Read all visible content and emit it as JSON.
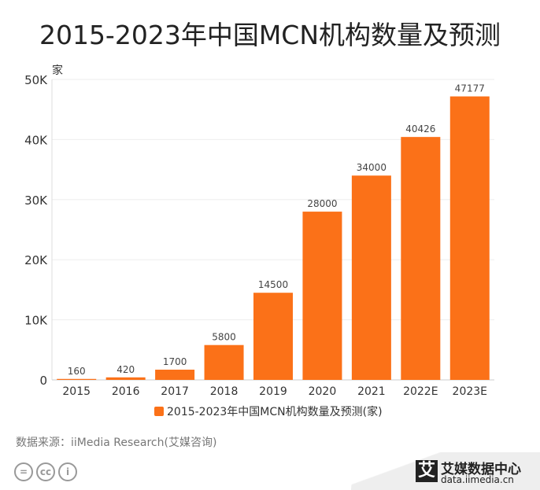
{
  "chart_data": {
    "type": "bar",
    "title": "2015-2023年中国MCN机构数量及预测",
    "ylabel": "家",
    "categories": [
      "2015",
      "2016",
      "2017",
      "2018",
      "2019",
      "2020",
      "2021",
      "2022E",
      "2023E"
    ],
    "series": [
      {
        "name": "2015-2023年中国MCN机构数量及预测(家)",
        "values": [
          160,
          420,
          1700,
          5800,
          14500,
          28000,
          34000,
          40426,
          47177
        ],
        "color": "#fb7118"
      }
    ],
    "ylim": [
      0,
      50000
    ],
    "yticks": [
      0,
      10000,
      20000,
      30000,
      40000,
      50000
    ],
    "ytick_labels": [
      "0",
      "10K",
      "20K",
      "30K",
      "40K",
      "50K"
    ],
    "grid": true,
    "legend_position": "bottom"
  },
  "footer": {
    "source": "数据来源：iiMedia Research(艾媒咨询)",
    "license_icons": [
      "equals-icon",
      "cc-icon",
      "person-icon"
    ],
    "license_labels": [
      "=",
      "cc",
      "i"
    ],
    "logo_mark": "艾",
    "logo_name": "艾媒数据中心",
    "logo_url": "data.iimedia.cn"
  }
}
